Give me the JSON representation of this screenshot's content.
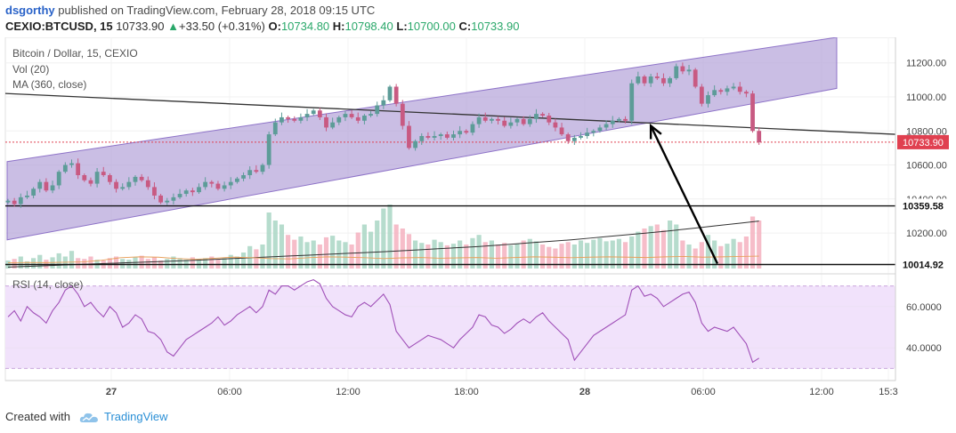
{
  "header": {
    "user": "dsgorthy",
    "published_text": "published on TradingView.com, February 28, 2018 09:15 UTC",
    "symbol": "CEXIO:BTCUSD, 15",
    "last": "10733.90",
    "change_arrow": "▲",
    "change": "+33.50 (+0.31%)",
    "o_label": "O:",
    "o_value": "10734.80",
    "h_label": "H:",
    "h_value": "10798.40",
    "l_label": "L:",
    "l_value": "10700.00",
    "c_label": "C:",
    "c_value": "10733.90"
  },
  "legend": {
    "series": "Bitcoin / Dollar, 15, CEXIO",
    "vol": "Vol (20)",
    "ma": "MA (360, close)",
    "rsi": "RSI (14, close)"
  },
  "footer": {
    "created_with": "Created with",
    "brand": "TradingView"
  },
  "colors": {
    "up": "#5d9c98",
    "down": "#c85a82",
    "channel_fill": "#b3a3d8",
    "rsi_band": "#f1e2fb",
    "rsi_line": "#a050b8",
    "price_label": "#e04050"
  },
  "chart_data": [
    {
      "type": "candlestick",
      "title": "Bitcoin / Dollar, 15, CEXIO",
      "ylim": [
        9960,
        11350
      ],
      "y_ticks": [
        10200,
        10400,
        10600,
        10800,
        11000,
        11200
      ],
      "x_tick_labels": [
        "27",
        "06:00",
        "12:00",
        "18:00",
        "28",
        "06:00",
        "12:00",
        "15:3"
      ],
      "last_price": 10733.9,
      "horizontal_levels": [
        10359.58,
        10014.92
      ],
      "close": [
        10390,
        10370,
        10410,
        10420,
        10460,
        10500,
        10450,
        10480,
        10560,
        10600,
        10610,
        10540,
        10510,
        10490,
        10560,
        10540,
        10500,
        10460,
        10470,
        10500,
        10530,
        10510,
        10470,
        10420,
        10380,
        10390,
        10410,
        10430,
        10450,
        10440,
        10470,
        10500,
        10490,
        10460,
        10480,
        10500,
        10520,
        10540,
        10570,
        10560,
        10600,
        10780,
        10850,
        10880,
        10870,
        10860,
        10880,
        10900,
        10920,
        10880,
        10820,
        10850,
        10880,
        10900,
        10880,
        10860,
        10890,
        10900,
        10950,
        10980,
        11060,
        10960,
        10830,
        10700,
        10740,
        10770,
        10760,
        10770,
        10780,
        10760,
        10780,
        10800,
        10790,
        10840,
        10880,
        10860,
        10870,
        10860,
        10830,
        10850,
        10870,
        10840,
        10870,
        10900,
        10890,
        10850,
        10820,
        10780,
        10740,
        10760,
        10770,
        10790,
        10800,
        10820,
        10840,
        10860,
        10870,
        10860,
        11080,
        11120,
        11080,
        11120,
        11110,
        11080,
        11110,
        11180,
        11150,
        11160,
        11060,
        10960,
        11010,
        11040,
        11030,
        11050,
        11060,
        11030,
        11020,
        10800,
        10733.9
      ],
      "volume_scale": [
        0,
        200
      ],
      "volume": [
        20,
        24,
        30,
        18,
        26,
        34,
        22,
        28,
        38,
        30,
        44,
        26,
        24,
        30,
        22,
        20,
        26,
        30,
        24,
        22,
        28,
        32,
        24,
        28,
        20,
        24,
        30,
        26,
        22,
        28,
        24,
        26,
        30,
        22,
        26,
        34,
        30,
        40,
        56,
        48,
        60,
        140,
        120,
        110,
        84,
        72,
        80,
        66,
        70,
        60,
        78,
        82,
        70,
        66,
        60,
        90,
        110,
        92,
        120,
        150,
        160,
        110,
        100,
        86,
        70,
        64,
        60,
        72,
        66,
        58,
        62,
        70,
        60,
        76,
        84,
        66,
        70,
        60,
        64,
        58,
        62,
        70,
        74,
        68,
        60,
        54,
        50,
        62,
        66,
        60,
        70,
        64,
        72,
        76,
        68,
        70,
        74,
        66,
        80,
        92,
        100,
        106,
        110,
        96,
        120,
        110,
        70,
        60,
        50,
        66,
        84,
        70,
        56,
        62,
        74,
        66,
        80,
        130,
        120
      ],
      "ma_series": [
        {
          "name": "MA (360, close)",
          "values": [
            10000,
            10004,
            10008,
            10012,
            10016,
            10020,
            10024,
            10028,
            10032,
            10036,
            10040,
            10045,
            10050,
            10055,
            10060,
            10065,
            10070,
            10075,
            10080,
            10085,
            10090,
            10096,
            10102,
            10108,
            10114,
            10120,
            10128,
            10136,
            10144,
            10152,
            10160,
            10170,
            10180,
            10190,
            10200,
            10210,
            10222,
            10234,
            10246,
            10258,
            10270
          ]
        },
        {
          "name": "Vol (20)",
          "values": [
            10025,
            10027,
            10026,
            10028,
            10030,
            10040,
            10055,
            10060,
            10058,
            10050,
            10046,
            10052,
            10058,
            10055,
            10050,
            10048,
            10055,
            10060,
            10058,
            10055,
            10050,
            10054,
            10056,
            10052,
            10054,
            10056,
            10052,
            10056,
            10060,
            10058,
            10055,
            10058,
            10060,
            10058,
            10056,
            10060,
            10062,
            10058,
            10060,
            10062,
            10064
          ]
        }
      ]
    },
    {
      "type": "line",
      "title": "RSI (14, close)",
      "ylim": [
        25,
        75
      ],
      "y_ticks": [
        40,
        60
      ],
      "y_tick_labels": [
        "40.0000",
        "60.0000"
      ],
      "band": [
        30,
        70
      ],
      "values": [
        55,
        58,
        53,
        60,
        57,
        55,
        52,
        58,
        62,
        68,
        70,
        66,
        60,
        62,
        58,
        55,
        60,
        57,
        50,
        52,
        56,
        54,
        48,
        47,
        44,
        38,
        36,
        40,
        44,
        46,
        48,
        50,
        52,
        55,
        51,
        53,
        56,
        58,
        60,
        57,
        60,
        68,
        66,
        70,
        70,
        68,
        70,
        72,
        73,
        71,
        64,
        60,
        58,
        56,
        55,
        60,
        62,
        60,
        63,
        66,
        61,
        48,
        44,
        40,
        42,
        44,
        46,
        45,
        44,
        42,
        40,
        44,
        47,
        50,
        56,
        55,
        51,
        50,
        47,
        49,
        52,
        54,
        52,
        55,
        57,
        53,
        50,
        47,
        44,
        34,
        38,
        42,
        46,
        48,
        50,
        52,
        54,
        56,
        68,
        70,
        65,
        66,
        64,
        60,
        62,
        64,
        66,
        67,
        62,
        52,
        48,
        50,
        49,
        48,
        50,
        46,
        42,
        33,
        35
      ]
    }
  ]
}
